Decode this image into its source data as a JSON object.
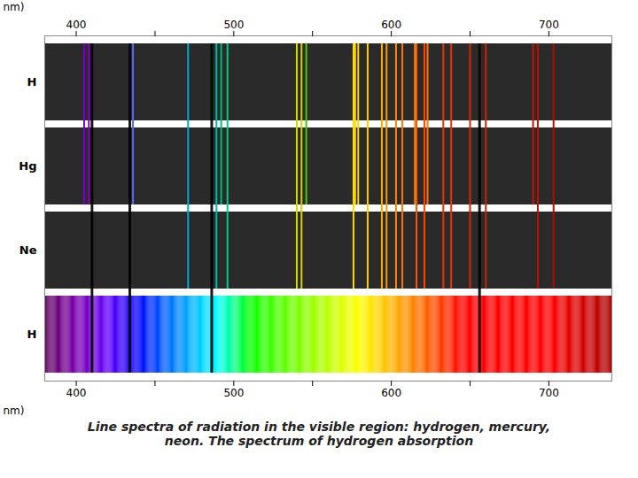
{
  "chart_data": {
    "type": "spectral_lines",
    "title": "Line spectra of radiation in the visible region: hydrogen, mercury,\nneon. The spectrum of hydrogen absorption",
    "xlabel": "nm)",
    "xlim": [
      380,
      740
    ],
    "xticks": [
      400,
      {
        "value": 450,
        "label": null
      },
      500,
      {
        "value": 550,
        "label": null
      },
      600,
      {
        "value": 650,
        "label": null
      },
      700
    ],
    "series": [
      {
        "name": "H",
        "type": "emission",
        "x": [
          410,
          434,
          486,
          656
        ],
        "colors": [
          "#8800EE",
          "#5555DD",
          "#00BB44",
          "#FF4400"
        ]
      },
      {
        "name": "Hg",
        "type": "emission",
        "x": [
          405,
          408,
          436,
          492,
          546,
          577,
          579,
          615,
          623,
          690
        ],
        "colors": [
          "#7700CC",
          "#8800BB",
          "#5566FF",
          "#00BB77",
          "#44CC00",
          "#FFDD00",
          "#FFD000",
          "#FF8800",
          "#FF7700",
          "#CC1100"
        ]
      },
      {
        "name": "Ne",
        "type": "emission",
        "x": [
          471,
          489,
          496,
          540,
          543,
          576,
          585,
          594,
          597,
          603,
          607,
          616,
          621,
          633,
          638,
          650,
          660,
          693,
          703
        ],
        "colors": [
          "#00AACC",
          "#00BBAA",
          "#00CC88",
          "#CCDD00",
          "#DDCC00",
          "#FFDD00",
          "#FFCC00",
          "#FFAA00",
          "#FF9900",
          "#FF8800",
          "#FF7700",
          "#FF5500",
          "#FF4400",
          "#EE3300",
          "#EE3300",
          "#DD2200",
          "#CC2200",
          "#BB1100",
          "#AA1000"
        ]
      },
      {
        "name": "H",
        "type": "absorption",
        "x": [
          410,
          434,
          486,
          656
        ],
        "color": "#000000"
      }
    ]
  }
}
